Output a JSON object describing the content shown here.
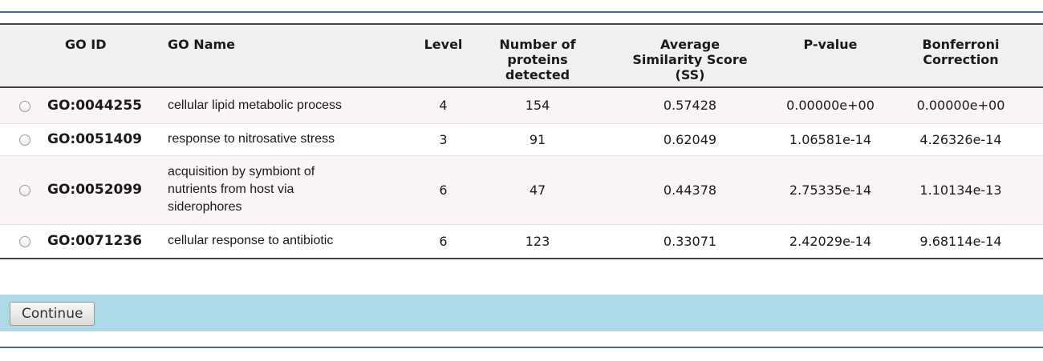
{
  "table": {
    "headers": {
      "select": "",
      "go_id": "GO ID",
      "go_name": "GO Name",
      "level": "Level",
      "num_proteins": [
        "Number of",
        "proteins",
        "detected"
      ],
      "avg_ss": [
        "Average",
        "Similarity Score",
        "(SS)"
      ],
      "p_value": "P-value",
      "bonferroni": [
        "Bonferroni",
        "Correction"
      ]
    },
    "rows": [
      {
        "go_id": "GO:0044255",
        "go_name": [
          "cellular lipid metabolic process"
        ],
        "level": "4",
        "num_proteins": "154",
        "avg_ss": "0.57428",
        "p_value": "0.00000e+00",
        "bonferroni": "0.00000e+00",
        "selected": false
      },
      {
        "go_id": "GO:0051409",
        "go_name": [
          "response to nitrosative stress"
        ],
        "level": "3",
        "num_proteins": "91",
        "avg_ss": "0.62049",
        "p_value": "1.06581e-14",
        "bonferroni": "4.26326e-14",
        "selected": false
      },
      {
        "go_id": "GO:0052099",
        "go_name": [
          "acquisition by symbiont of",
          "nutrients from host via",
          "siderophores"
        ],
        "level": "6",
        "num_proteins": "47",
        "avg_ss": "0.44378",
        "p_value": "2.75335e-14",
        "bonferroni": "1.10134e-13",
        "selected": false
      },
      {
        "go_id": "GO:0071236",
        "go_name": [
          "cellular response to antibiotic"
        ],
        "level": "6",
        "num_proteins": "123",
        "avg_ss": "0.33071",
        "p_value": "2.42029e-14",
        "bonferroni": "9.68114e-14",
        "selected": false
      }
    ]
  },
  "actions": {
    "continue_label": "Continue"
  },
  "colors": {
    "action_bar": "#add8e6",
    "rule": "#4a6c8c",
    "header_bg": "#f0f0f0",
    "alt_row_bg": "#fbf4f4"
  }
}
